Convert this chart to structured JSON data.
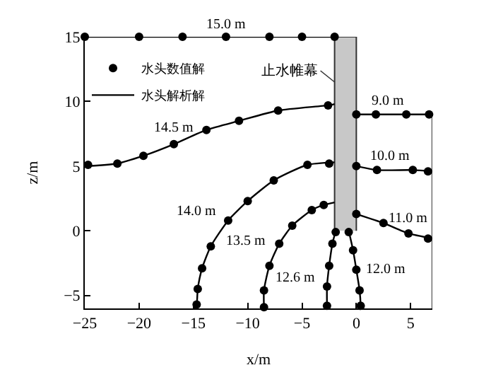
{
  "chart_data": {
    "type": "line",
    "xlabel": "x/m",
    "ylabel": "z/m",
    "xlim": [
      -25,
      7
    ],
    "ylim": [
      -6,
      15
    ],
    "xticks": [
      -25,
      -20,
      -15,
      -10,
      -5,
      0,
      5
    ],
    "yticks": [
      -5,
      0,
      5,
      10,
      15
    ],
    "legend": "top left",
    "grid": false,
    "series": [
      {
        "type": "area",
        "color": "#c8c8c8",
        "x": [
          -2,
          -2,
          0,
          0
        ],
        "values": [
          0,
          15,
          15,
          0
        ]
      },
      {
        "color": "#555555",
        "x": [
          7,
          7
        ],
        "values": [
          9,
          -6
        ]
      },
      {
        "name": "水头解析解",
        "color": "#000000",
        "x": [
          -25,
          -2
        ],
        "values": [
          15,
          15
        ]
      },
      {
        "color": "#000000",
        "x": [
          -25,
          -22,
          -19.6,
          -16.8,
          -13.8,
          -10.8,
          -7.2,
          -2.6,
          -2
        ],
        "values": [
          5.0,
          5.2,
          5.8,
          6.7,
          7.8,
          8.5,
          9.3,
          9.7,
          9.8
        ]
      },
      {
        "color": "#000000",
        "x": [
          -14.9,
          -14.7,
          -14.6,
          -14.2,
          -13.4,
          -11.8,
          -10,
          -7.6,
          -4.5,
          -2
        ],
        "values": [
          -6,
          -5.7,
          -4.5,
          -2.9,
          -1.2,
          0.8,
          2.3,
          3.9,
          5.1,
          5.3
        ]
      },
      {
        "color": "#000000",
        "x": [
          -8.5,
          -8.5,
          -8.0,
          -7.1,
          -5.9,
          -4.1,
          -3.0,
          -2
        ],
        "values": [
          -6,
          -4.6,
          -2.7,
          -1.0,
          0.4,
          1.6,
          2.0,
          2.2
        ]
      },
      {
        "color": "#000000",
        "x": [
          -1.9,
          -2.2,
          -2.5,
          -2.7,
          -2.7,
          -2.7
        ],
        "values": [
          0,
          -1.0,
          -2.7,
          -4.3,
          -5.8,
          -6
        ]
      },
      {
        "color": "#000000",
        "x": [
          -0.7,
          -0.3,
          0,
          0.3,
          0.4,
          0.4
        ],
        "values": [
          0,
          -1.5,
          -3.0,
          -4.6,
          -5.8,
          -6
        ]
      },
      {
        "color": "#000000",
        "x": [
          0,
          2.5,
          4.8,
          7
        ],
        "values": [
          1.3,
          0.6,
          -0.2,
          -0.6
        ]
      },
      {
        "color": "#000000",
        "x": [
          0,
          1.9,
          5.2,
          7
        ],
        "values": [
          5.0,
          4.7,
          4.7,
          4.6
        ]
      },
      {
        "color": "#000000",
        "x": [
          0,
          7
        ],
        "values": [
          9,
          9
        ]
      },
      {
        "type": "scatter",
        "name": "水头数值解",
        "color": "#000000",
        "marker": "circle",
        "x": [
          -25,
          -20,
          -16,
          -12,
          -8,
          -5,
          -2,
          -24.7,
          -22,
          -19.6,
          -16.8,
          -13.8,
          -10.8,
          -7.2,
          -2.6,
          -2.5,
          -4.5,
          -7.6,
          -10,
          -11.8,
          -13.4,
          -14.2,
          -14.6,
          -14.7,
          -3.0,
          -4.1,
          -5.9,
          -7.1,
          -8.0,
          -8.5,
          -8.5,
          -1.9,
          -2.2,
          -2.5,
          -2.7,
          -2.7,
          -0.7,
          -0.3,
          0,
          0.3,
          0.4,
          0,
          2.5,
          4.8,
          6.6,
          0,
          1.9,
          5.2,
          6.6,
          0,
          1.8,
          4.6,
          6.7
        ],
        "values": [
          15,
          15,
          15,
          15,
          15,
          15,
          15,
          5.1,
          5.2,
          5.8,
          6.7,
          7.8,
          8.5,
          9.3,
          9.7,
          5.2,
          5.1,
          3.9,
          2.3,
          0.8,
          -1.2,
          -2.9,
          -4.5,
          -5.7,
          2.0,
          1.6,
          0.4,
          -1.0,
          -2.7,
          -4.6,
          -5.9,
          -0.1,
          -1.0,
          -2.7,
          -4.3,
          -5.8,
          -0.1,
          -1.5,
          -3.0,
          -4.6,
          -5.8,
          1.3,
          0.6,
          -0.2,
          -0.6,
          5.0,
          4.7,
          4.7,
          4.6,
          9,
          9,
          9,
          9
        ]
      }
    ],
    "annotations": [
      {
        "text": "15.0 m",
        "x": -12,
        "y": 15
      },
      {
        "text": "14.5 m",
        "x": -16.8,
        "y": 6.7
      },
      {
        "text": "14.0 m",
        "x": -11.8,
        "y": 0.8
      },
      {
        "text": "13.5 m",
        "x": -7.1,
        "y": -1.0
      },
      {
        "text": "12.6 m",
        "x": -2.7,
        "y": -4.3
      },
      {
        "text": "12.0 m",
        "x": 0,
        "y": -3.0
      },
      {
        "text": "11.0 m",
        "x": 4.8,
        "y": -0.2
      },
      {
        "text": "10.0 m",
        "x": 5.2,
        "y": 4.7
      },
      {
        "text": "9.0 m",
        "x": 4.6,
        "y": 9
      },
      {
        "text": "止水帷幕",
        "x": -2,
        "y": 11.5
      }
    ]
  }
}
